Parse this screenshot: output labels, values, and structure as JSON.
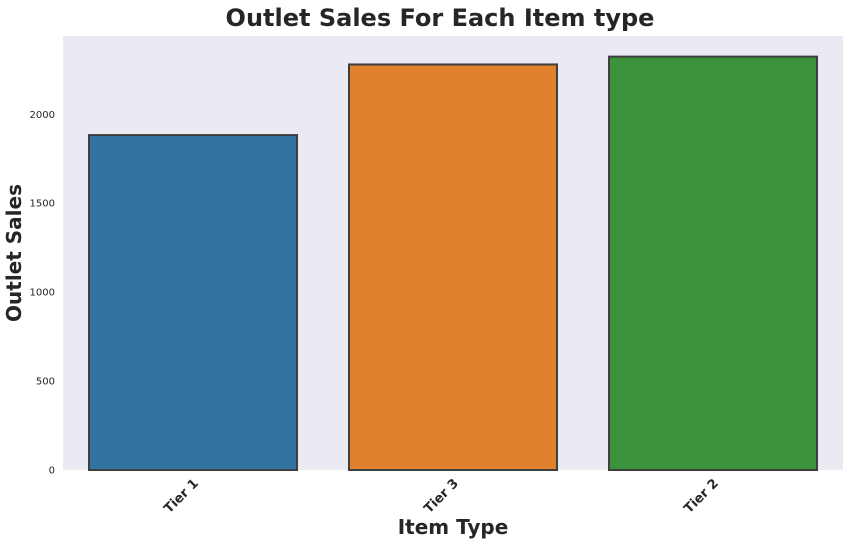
{
  "chart_data": {
    "type": "bar",
    "title": "Outlet Sales For Each Item type",
    "xlabel": "Item Type",
    "ylabel": "Outlet Sales",
    "categories": [
      "Tier 1",
      "Tier 3",
      "Tier 2"
    ],
    "values": [
      1883,
      2280,
      2324
    ],
    "colors": [
      "#3274a1",
      "#e1812c",
      "#3a923a"
    ],
    "edge_color": "#3f3f3f",
    "background_color": "#eaeaf2",
    "ylim": [
      0,
      2440
    ],
    "yticks": [
      0,
      500,
      1000,
      1500,
      2000
    ],
    "grid": false,
    "legend": "none"
  }
}
